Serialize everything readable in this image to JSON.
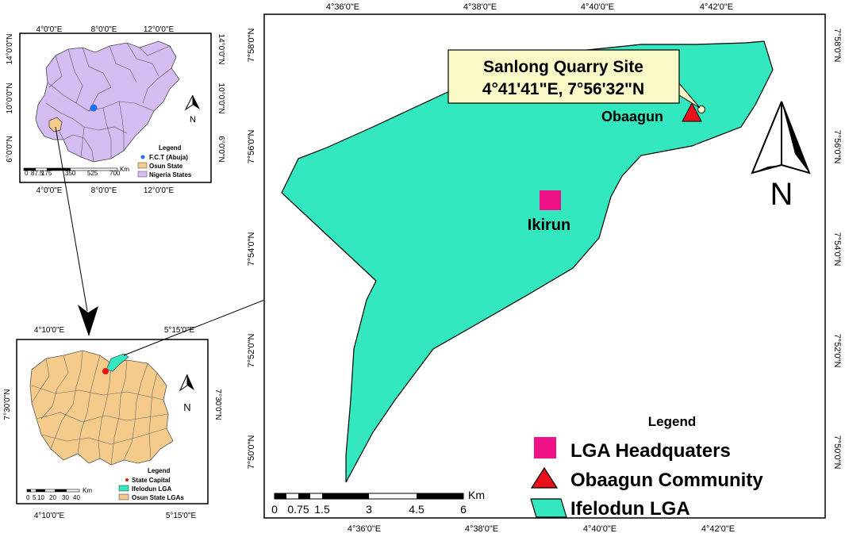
{
  "colors": {
    "ifelodun": "#33e8bf",
    "osun": "#f5cb8c",
    "nigeria": "#d5bdf3",
    "lga_hq": "#ee1188",
    "community": "#e8101a",
    "callout_bg": "#fafac8",
    "fct": "#1e6fe8",
    "state_capital": "#ee1111"
  },
  "nigeria_inset": {
    "top_ticks": [
      "4°0'0\"E",
      "8°0'0\"E",
      "12°0'0\"E"
    ],
    "bottom_ticks": [
      "4°0'0\"E",
      "8°0'0\"E",
      "12°0'0\"E"
    ],
    "left_ticks": [
      "14°0'0\"N",
      "10°0'0\"N",
      "6°0'0\"N"
    ],
    "right_ticks": [
      "14°0'0\"N",
      "10°0'0\"N",
      "6°0'0\"N"
    ],
    "north": "N",
    "legend_title": "Legend",
    "legend": [
      "F.C.T (Abuja)",
      "Osun State",
      "Nigeria States"
    ],
    "scale_labels": [
      "0",
      "87.5",
      "175",
      "350",
      "525",
      "700"
    ],
    "scale_unit": "Km"
  },
  "osun_inset": {
    "top_ticks": [
      "4°10'0\"E",
      "5°15'0\"E"
    ],
    "bottom_ticks": [
      "4°10'0\"E",
      "5°15'0\"E"
    ],
    "left_ticks": [
      "7°30'0\"N"
    ],
    "right_ticks": [
      "7°30'0\"N"
    ],
    "north": "N",
    "legend_title": "Legend",
    "legend": [
      "State Capital",
      "Ifelodun LGA",
      "Osun State LGAs"
    ],
    "scale_labels": [
      "0",
      "5",
      "10",
      "20",
      "30",
      "40"
    ],
    "scale_unit": "Km"
  },
  "main_map": {
    "top_ticks": [
      "4°36'0\"E",
      "4°38'0\"E",
      "4°40'0\"E",
      "4°42'0\"E"
    ],
    "bottom_ticks": [
      "4°36'0\"E",
      "4°38'0\"E",
      "4°40'0\"E",
      "4°42'0\"E"
    ],
    "left_ticks": [
      "7°58'0\"N",
      "7°56'0\"N",
      "7°54'0\"N",
      "7°52'0\"N",
      "7°50'0\"N"
    ],
    "right_ticks": [
      "7°58'0\"N",
      "7°56'0\"N",
      "7°54'0\"N",
      "7°52'0\"N",
      "7°50'0\"N"
    ],
    "callout_line1": "Sanlong Quarry Site",
    "callout_line2": "4°41'41\"E, 7°56'32\"N",
    "community_label": "Obaagun",
    "hq_label": "Ikirun",
    "north": "N",
    "legend_title": "Legend",
    "legend": [
      "LGA Headquaters",
      "Obaagun Community",
      "Ifelodun LGA"
    ],
    "scale_labels": [
      "0",
      "0.75",
      "1.5",
      "3",
      "4.5",
      "6"
    ],
    "scale_unit": "Km"
  }
}
